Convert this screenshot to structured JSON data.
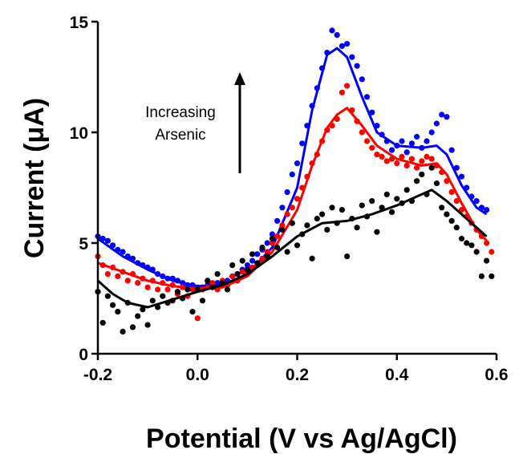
{
  "chart_data": {
    "type": "scatter",
    "title": "",
    "xlabel": "Potential (V vs Ag/AgCl)",
    "ylabel": "Current (μA)",
    "xlim": [
      -0.2,
      0.6
    ],
    "ylim": [
      0,
      15
    ],
    "xticks": [
      "-0.2",
      "0.0",
      "0.2",
      "0.4",
      "0.6"
    ],
    "yticks": [
      "0",
      "5",
      "10",
      "15"
    ],
    "grid": false,
    "legend": "none",
    "annotation": {
      "lines": [
        "Increasing",
        "Arsenic"
      ],
      "arrow": "up"
    },
    "series": [
      {
        "color": "#0000ff",
        "fit": [
          [
            -0.2,
            5.2
          ],
          [
            -0.15,
            4.4
          ],
          [
            -0.1,
            3.8
          ],
          [
            -0.05,
            3.3
          ],
          [
            0.0,
            3.05
          ],
          [
            0.05,
            3.1
          ],
          [
            0.1,
            3.6
          ],
          [
            0.15,
            4.8
          ],
          [
            0.2,
            7.5
          ],
          [
            0.23,
            11.0
          ],
          [
            0.26,
            13.5
          ],
          [
            0.28,
            13.8
          ],
          [
            0.3,
            13.4
          ],
          [
            0.33,
            11.6
          ],
          [
            0.36,
            10.0
          ],
          [
            0.4,
            9.4
          ],
          [
            0.45,
            9.3
          ],
          [
            0.48,
            9.4
          ],
          [
            0.5,
            9.0
          ],
          [
            0.53,
            7.6
          ],
          [
            0.56,
            6.6
          ],
          [
            0.58,
            6.3
          ]
        ],
        "points": [
          [
            -0.2,
            5.3
          ],
          [
            -0.19,
            5.2
          ],
          [
            -0.18,
            5.1
          ],
          [
            -0.17,
            4.9
          ],
          [
            -0.16,
            4.7
          ],
          [
            -0.15,
            4.6
          ],
          [
            -0.14,
            4.4
          ],
          [
            -0.13,
            4.3
          ],
          [
            -0.12,
            4.1
          ],
          [
            -0.11,
            4.0
          ],
          [
            -0.1,
            3.9
          ],
          [
            -0.09,
            3.8
          ],
          [
            -0.08,
            3.6
          ],
          [
            -0.07,
            3.5
          ],
          [
            -0.06,
            3.4
          ],
          [
            -0.05,
            3.4
          ],
          [
            -0.04,
            3.3
          ],
          [
            -0.03,
            3.2
          ],
          [
            -0.02,
            3.1
          ],
          [
            -0.01,
            3.1
          ],
          [
            0.0,
            3.0
          ],
          [
            0.01,
            3.0
          ],
          [
            0.02,
            3.1
          ],
          [
            0.03,
            3.1
          ],
          [
            0.04,
            3.2
          ],
          [
            0.05,
            3.2
          ],
          [
            0.06,
            3.3
          ],
          [
            0.07,
            3.5
          ],
          [
            0.08,
            3.6
          ],
          [
            0.09,
            3.8
          ],
          [
            0.1,
            4.0
          ],
          [
            0.11,
            4.2
          ],
          [
            0.12,
            4.5
          ],
          [
            0.13,
            4.7
          ],
          [
            0.14,
            5.0
          ],
          [
            0.15,
            5.4
          ],
          [
            0.16,
            6.0
          ],
          [
            0.17,
            6.6
          ],
          [
            0.18,
            7.3
          ],
          [
            0.19,
            8.1
          ],
          [
            0.2,
            8.6
          ],
          [
            0.21,
            9.5
          ],
          [
            0.22,
            10.3
          ],
          [
            0.23,
            11.2
          ],
          [
            0.24,
            12.0
          ],
          [
            0.25,
            12.9
          ],
          [
            0.26,
            13.6
          ],
          [
            0.27,
            14.6
          ],
          [
            0.28,
            14.4
          ],
          [
            0.29,
            13.9
          ],
          [
            0.3,
            14.0
          ],
          [
            0.31,
            13.4
          ],
          [
            0.32,
            13.0
          ],
          [
            0.33,
            12.4
          ],
          [
            0.34,
            11.6
          ],
          [
            0.35,
            10.9
          ],
          [
            0.36,
            10.3
          ],
          [
            0.37,
            9.9
          ],
          [
            0.38,
            9.6
          ],
          [
            0.39,
            9.2
          ],
          [
            0.4,
            9.4
          ],
          [
            0.41,
            9.6
          ],
          [
            0.42,
            9.1
          ],
          [
            0.43,
            9.5
          ],
          [
            0.44,
            9.8
          ],
          [
            0.45,
            9.3
          ],
          [
            0.46,
            9.6
          ],
          [
            0.47,
            10.0
          ],
          [
            0.48,
            10.4
          ],
          [
            0.49,
            10.8
          ],
          [
            0.5,
            10.7
          ],
          [
            0.51,
            9.2
          ],
          [
            0.52,
            8.4
          ],
          [
            0.53,
            8.0
          ],
          [
            0.54,
            7.5
          ],
          [
            0.55,
            7.1
          ],
          [
            0.56,
            6.9
          ],
          [
            0.57,
            6.6
          ],
          [
            0.58,
            6.5
          ]
        ]
      },
      {
        "color": "#ff0000",
        "fit": [
          [
            -0.2,
            4.1
          ],
          [
            -0.15,
            3.7
          ],
          [
            -0.1,
            3.3
          ],
          [
            -0.05,
            3.05
          ],
          [
            0.0,
            2.95
          ],
          [
            0.05,
            3.0
          ],
          [
            0.1,
            3.5
          ],
          [
            0.15,
            4.6
          ],
          [
            0.2,
            6.5
          ],
          [
            0.23,
            8.5
          ],
          [
            0.26,
            10.2
          ],
          [
            0.28,
            10.8
          ],
          [
            0.3,
            11.1
          ],
          [
            0.33,
            10.3
          ],
          [
            0.36,
            9.4
          ],
          [
            0.4,
            8.8
          ],
          [
            0.45,
            8.5
          ],
          [
            0.48,
            8.6
          ],
          [
            0.5,
            8.1
          ],
          [
            0.53,
            6.8
          ],
          [
            0.56,
            5.6
          ],
          [
            0.58,
            5.1
          ]
        ],
        "points": [
          [
            -0.2,
            4.4
          ],
          [
            -0.19,
            4.0
          ],
          [
            -0.18,
            3.6
          ],
          [
            -0.17,
            3.9
          ],
          [
            -0.16,
            3.5
          ],
          [
            -0.15,
            3.7
          ],
          [
            -0.14,
            3.3
          ],
          [
            -0.13,
            3.6
          ],
          [
            -0.12,
            3.2
          ],
          [
            -0.11,
            3.4
          ],
          [
            -0.1,
            3.0
          ],
          [
            -0.09,
            3.3
          ],
          [
            -0.08,
            2.9
          ],
          [
            -0.07,
            3.2
          ],
          [
            -0.06,
            2.9
          ],
          [
            -0.05,
            3.1
          ],
          [
            -0.04,
            2.7
          ],
          [
            -0.03,
            3.0
          ],
          [
            -0.02,
            2.6
          ],
          [
            -0.01,
            2.9
          ],
          [
            0.0,
            1.6
          ],
          [
            0.01,
            2.9
          ],
          [
            0.02,
            3.0
          ],
          [
            0.03,
            3.2
          ],
          [
            0.04,
            2.9
          ],
          [
            0.05,
            3.3
          ],
          [
            0.06,
            3.1
          ],
          [
            0.07,
            3.5
          ],
          [
            0.08,
            3.3
          ],
          [
            0.09,
            3.7
          ],
          [
            0.1,
            3.6
          ],
          [
            0.11,
            3.9
          ],
          [
            0.12,
            4.0
          ],
          [
            0.13,
            4.3
          ],
          [
            0.14,
            4.6
          ],
          [
            0.15,
            5.0
          ],
          [
            0.16,
            5.3
          ],
          [
            0.17,
            5.8
          ],
          [
            0.18,
            6.3
          ],
          [
            0.19,
            6.6
          ],
          [
            0.2,
            7.0
          ],
          [
            0.21,
            7.5
          ],
          [
            0.22,
            8.0
          ],
          [
            0.23,
            8.6
          ],
          [
            0.24,
            9.0
          ],
          [
            0.25,
            9.6
          ],
          [
            0.26,
            10.1
          ],
          [
            0.27,
            10.3
          ],
          [
            0.28,
            10.6
          ],
          [
            0.29,
            11.8
          ],
          [
            0.3,
            12.1
          ],
          [
            0.31,
            11.0
          ],
          [
            0.32,
            10.5
          ],
          [
            0.33,
            10.0
          ],
          [
            0.34,
            9.6
          ],
          [
            0.35,
            9.3
          ],
          [
            0.36,
            9.0
          ],
          [
            0.37,
            8.9
          ],
          [
            0.38,
            8.7
          ],
          [
            0.39,
            8.8
          ],
          [
            0.4,
            8.6
          ],
          [
            0.41,
            8.9
          ],
          [
            0.42,
            8.5
          ],
          [
            0.43,
            8.8
          ],
          [
            0.44,
            8.4
          ],
          [
            0.45,
            8.7
          ],
          [
            0.46,
            8.9
          ],
          [
            0.47,
            8.8
          ],
          [
            0.48,
            8.5
          ],
          [
            0.49,
            8.2
          ],
          [
            0.5,
            7.8
          ],
          [
            0.51,
            7.3
          ],
          [
            0.52,
            6.9
          ],
          [
            0.53,
            6.5
          ],
          [
            0.54,
            6.2
          ],
          [
            0.55,
            5.9
          ],
          [
            0.56,
            5.6
          ],
          [
            0.57,
            5.3
          ],
          [
            0.58,
            5.0
          ],
          [
            0.59,
            4.6
          ]
        ]
      },
      {
        "color": "#000000",
        "fit": [
          [
            -0.2,
            3.3
          ],
          [
            -0.17,
            2.7
          ],
          [
            -0.14,
            2.3
          ],
          [
            -0.1,
            2.1
          ],
          [
            -0.05,
            2.45
          ],
          [
            0.0,
            2.8
          ],
          [
            0.05,
            3.1
          ],
          [
            0.1,
            3.6
          ],
          [
            0.15,
            4.4
          ],
          [
            0.2,
            5.3
          ],
          [
            0.25,
            5.9
          ],
          [
            0.3,
            6.0
          ],
          [
            0.35,
            6.3
          ],
          [
            0.4,
            6.7
          ],
          [
            0.44,
            7.1
          ],
          [
            0.47,
            7.4
          ],
          [
            0.5,
            6.9
          ],
          [
            0.53,
            6.3
          ],
          [
            0.56,
            5.7
          ],
          [
            0.58,
            5.3
          ]
        ],
        "points": [
          [
            -0.2,
            2.8
          ],
          [
            -0.19,
            1.4
          ],
          [
            -0.18,
            2.6
          ],
          [
            -0.17,
            2.2
          ],
          [
            -0.16,
            1.9
          ],
          [
            -0.15,
            1.0
          ],
          [
            -0.14,
            2.3
          ],
          [
            -0.13,
            1.2
          ],
          [
            -0.12,
            1.7
          ],
          [
            -0.11,
            2.0
          ],
          [
            -0.1,
            1.3
          ],
          [
            -0.09,
            2.4
          ],
          [
            -0.08,
            2.1
          ],
          [
            -0.07,
            2.6
          ],
          [
            -0.06,
            2.3
          ],
          [
            -0.05,
            2.4
          ],
          [
            -0.04,
            2.8
          ],
          [
            -0.03,
            2.5
          ],
          [
            -0.02,
            2.9
          ],
          [
            -0.01,
            1.9
          ],
          [
            0.0,
            2.9
          ],
          [
            0.01,
            2.4
          ],
          [
            0.02,
            3.3
          ],
          [
            0.03,
            3.0
          ],
          [
            0.04,
            3.6
          ],
          [
            0.05,
            3.2
          ],
          [
            0.06,
            2.9
          ],
          [
            0.07,
            4.0
          ],
          [
            0.08,
            3.6
          ],
          [
            0.09,
            4.2
          ],
          [
            0.1,
            3.8
          ],
          [
            0.11,
            4.5
          ],
          [
            0.12,
            4.1
          ],
          [
            0.13,
            4.8
          ],
          [
            0.14,
            4.4
          ],
          [
            0.15,
            5.2
          ],
          [
            0.16,
            4.8
          ],
          [
            0.17,
            5.6
          ],
          [
            0.18,
            4.6
          ],
          [
            0.19,
            5.9
          ],
          [
            0.2,
            4.9
          ],
          [
            0.21,
            5.4
          ],
          [
            0.22,
            5.8
          ],
          [
            0.23,
            4.3
          ],
          [
            0.24,
            6.1
          ],
          [
            0.25,
            6.3
          ],
          [
            0.26,
            5.6
          ],
          [
            0.27,
            6.6
          ],
          [
            0.28,
            5.9
          ],
          [
            0.29,
            6.5
          ],
          [
            0.3,
            4.4
          ],
          [
            0.31,
            6.1
          ],
          [
            0.32,
            5.7
          ],
          [
            0.33,
            6.7
          ],
          [
            0.34,
            6.2
          ],
          [
            0.35,
            6.9
          ],
          [
            0.36,
            5.5
          ],
          [
            0.37,
            6.6
          ],
          [
            0.38,
            7.2
          ],
          [
            0.39,
            6.4
          ],
          [
            0.4,
            7.0
          ],
          [
            0.41,
            6.8
          ],
          [
            0.42,
            7.4
          ],
          [
            0.43,
            6.9
          ],
          [
            0.44,
            7.8
          ],
          [
            0.45,
            8.1
          ],
          [
            0.46,
            7.2
          ],
          [
            0.47,
            8.4
          ],
          [
            0.48,
            7.7
          ],
          [
            0.49,
            6.6
          ],
          [
            0.5,
            6.3
          ],
          [
            0.51,
            6.0
          ],
          [
            0.52,
            5.7
          ],
          [
            0.53,
            5.2
          ],
          [
            0.54,
            5.0
          ],
          [
            0.55,
            4.9
          ],
          [
            0.56,
            4.6
          ],
          [
            0.57,
            3.5
          ],
          [
            0.58,
            4.2
          ],
          [
            0.59,
            3.5
          ]
        ]
      }
    ]
  }
}
